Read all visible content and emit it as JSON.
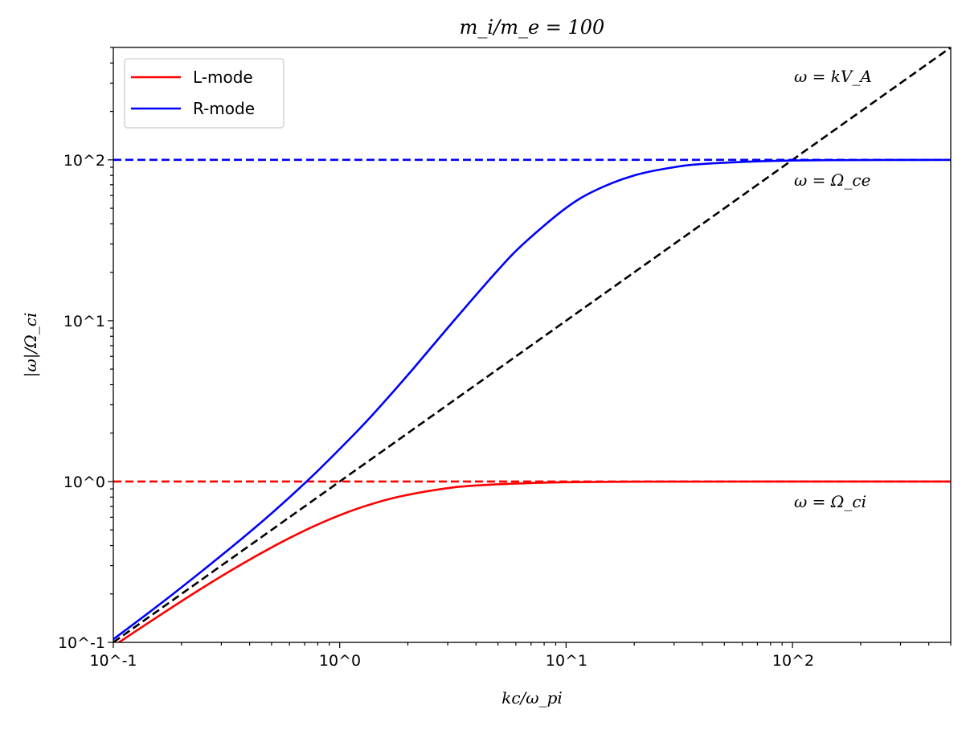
{
  "chart_data": {
    "type": "line",
    "title": "_{m}_{i}/m_{e} = 100",
    "title_parts": {
      "text": "m_i/m_e = 100"
    },
    "xlabel": "kc/ω_pi",
    "ylabel": "|ω|/Ω_ci",
    "xscale": "log",
    "yscale": "log",
    "xlim": [
      0.1,
      500
    ],
    "ylim": [
      0.1,
      500
    ],
    "xticks": [
      {
        "value": 0.1,
        "label": "10^-1"
      },
      {
        "value": 1,
        "label": "10^0"
      },
      {
        "value": 10,
        "label": "10^1"
      },
      {
        "value": 100,
        "label": "10^2"
      }
    ],
    "yticks": [
      {
        "value": 0.1,
        "label": "10^-1"
      },
      {
        "value": 1,
        "label": "10^0"
      },
      {
        "value": 10,
        "label": "10^1"
      },
      {
        "value": 100,
        "label": "10^2"
      }
    ],
    "grid": false,
    "legend": {
      "placement": "top-left",
      "entries": [
        {
          "label": "L-mode",
          "color": "#ff0000"
        },
        {
          "label": "R-mode",
          "color": "#0000ff"
        }
      ]
    },
    "mass_ratio": 100,
    "series": [
      {
        "name": "L-mode",
        "color": "#ff0000",
        "style": "solid",
        "x": [
          0.0515,
          0.1059,
          0.2245,
          0.36,
          0.518,
          0.709,
          0.951,
          1.28,
          1.791,
          2.847,
          4.25,
          9.9,
          31.6,
          100,
          316,
          500
        ],
        "y": [
          0.05,
          0.1,
          0.2,
          0.3,
          0.4,
          0.5,
          0.6,
          0.7,
          0.8,
          0.9,
          0.95,
          0.99,
          0.999,
          0.9999,
          0.99999,
          0.999996
        ]
      },
      {
        "name": "R-mode",
        "color": "#0000ff",
        "style": "solid",
        "x": [
          0.0959,
          0.1837,
          0.411,
          0.714,
          1.172,
          1.531,
          2.105,
          3.194,
          4.904,
          6.47,
          9.95,
          13.59,
          19.97,
          29.98,
          43.6,
          99.5,
          316,
          500
        ],
        "y": [
          0.1,
          0.2,
          0.5,
          1,
          2,
          3,
          5,
          10,
          20,
          30,
          50,
          65,
          80,
          90,
          95,
          99,
          99.9,
          99.96
        ]
      },
      {
        "name": "ω = kV_A",
        "color": "#000000",
        "style": "dashed",
        "x": [
          0.1,
          500
        ],
        "y": [
          0.1,
          500
        ]
      },
      {
        "name": "ω = Ω_ce",
        "color": "#0000ff",
        "style": "dashed",
        "x": [
          0.1,
          500
        ],
        "y": [
          100,
          100
        ]
      },
      {
        "name": "ω = Ω_ci",
        "color": "#ff0000",
        "style": "dashed",
        "x": [
          0.1,
          500
        ],
        "y": [
          1,
          1
        ]
      }
    ],
    "annotations": [
      {
        "text": "ω = kV_A",
        "x": 100,
        "y": 290
      },
      {
        "text": "ω = Ω_ce",
        "x": 100,
        "y": 70
      },
      {
        "text": "ω = Ω_ci",
        "x": 100,
        "y": 0.7
      }
    ]
  }
}
